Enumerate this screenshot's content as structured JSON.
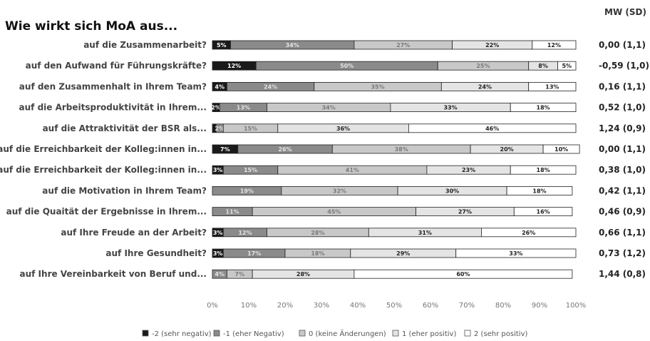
{
  "chart_data": {
    "type": "bar",
    "orientation": "horizontal",
    "stacked": true,
    "title": "Wie wirkt sich MoA aus...",
    "stat_header": "MW (SD)",
    "categories": [
      "auf die Zusammenarbeit?",
      "auf den Aufwand für Führungskräfte?",
      "auf den Zusammenhalt in Ihrem Team?",
      "auf die Arbeitsproduktivität in Ihrem...",
      "auf die Attraktivität der BSR als...",
      "auf die Erreichbarkeit der Kolleg:innen in...",
      "auf die Erreichbarkeit der Kolleg:innen in...",
      "auf die Motivation in Ihrem Team?",
      "auf die Quaität der Ergebnisse in Ihrem...",
      "auf Ihre Freude an der Arbeit?",
      "auf Ihre Gesundheit?",
      "auf Ihre Vereinbarkeit von Beruf und..."
    ],
    "series": [
      {
        "name": "-2 (sehr negativ)",
        "color": "#1a1a1a",
        "text_color": "#ffffff",
        "values": [
          5,
          12,
          4,
          2,
          1,
          7,
          3,
          0,
          0,
          3,
          3,
          0
        ],
        "labels": [
          "5%",
          "12%",
          "4%",
          "2%",
          "",
          "7%",
          "3%",
          "",
          "",
          "3%",
          "3%",
          ""
        ]
      },
      {
        "name": "-1 (eher Negativ)",
        "color": "#8a8a8a",
        "text_color": "#e4e4e4",
        "values": [
          34,
          50,
          24,
          13,
          2,
          26,
          15,
          19,
          11,
          12,
          17,
          4
        ],
        "labels": [
          "34%",
          "50%",
          "24%",
          "13%",
          "2%",
          "26%",
          "15%",
          "19%",
          "11%",
          "12%",
          "17%",
          "4%"
        ]
      },
      {
        "name": "0 (keine Änderungen)",
        "color": "#c8c8c8",
        "text_color": "#7a7a7a",
        "values": [
          27,
          25,
          35,
          34,
          15,
          38,
          41,
          32,
          45,
          28,
          18,
          7
        ],
        "labels": [
          "27%",
          "25%",
          "35%",
          "34%",
          "15%",
          "38%",
          "41%",
          "32%",
          "45%",
          "28%",
          "18%",
          "7%"
        ]
      },
      {
        "name": "1 (eher positiv)",
        "color": "#e4e4e4",
        "text_color": "#222222",
        "values": [
          22,
          8,
          24,
          33,
          36,
          20,
          23,
          30,
          27,
          31,
          29,
          28
        ],
        "labels": [
          "22%",
          "8%",
          "24%",
          "33%",
          "36%",
          "20%",
          "23%",
          "30%",
          "27%",
          "31%",
          "29%",
          "28%"
        ]
      },
      {
        "name": "2 (sehr positiv)",
        "color": "#ffffff",
        "text_color": "#222222",
        "values": [
          12,
          5,
          13,
          18,
          46,
          10,
          18,
          18,
          16,
          26,
          33,
          60
        ],
        "labels": [
          "12%",
          "5%",
          "13%",
          "18%",
          "46%",
          "10%",
          "18%",
          "18%",
          "16%",
          "26%",
          "33%",
          "60%"
        ]
      }
    ],
    "row_stats": [
      "0,00 (1,1)",
      "-0,59 (1,0)",
      "0,16 (1,1)",
      "0,52 (1,0)",
      "1,24 (0,9)",
      "0,00 (1,1)",
      "0,38 (1,0)",
      "0,42 (1,1)",
      "0,46 (0,9)",
      "0,66 (1,1)",
      "0,73 (1,2)",
      "1,44 (0,8)"
    ],
    "xlim": [
      0,
      100
    ],
    "xticks": [
      "0%",
      "10%",
      "20%",
      "30%",
      "40%",
      "50%",
      "60%",
      "70%",
      "80%",
      "90%",
      "100%"
    ],
    "grid": false,
    "legend_position": "bottom"
  }
}
